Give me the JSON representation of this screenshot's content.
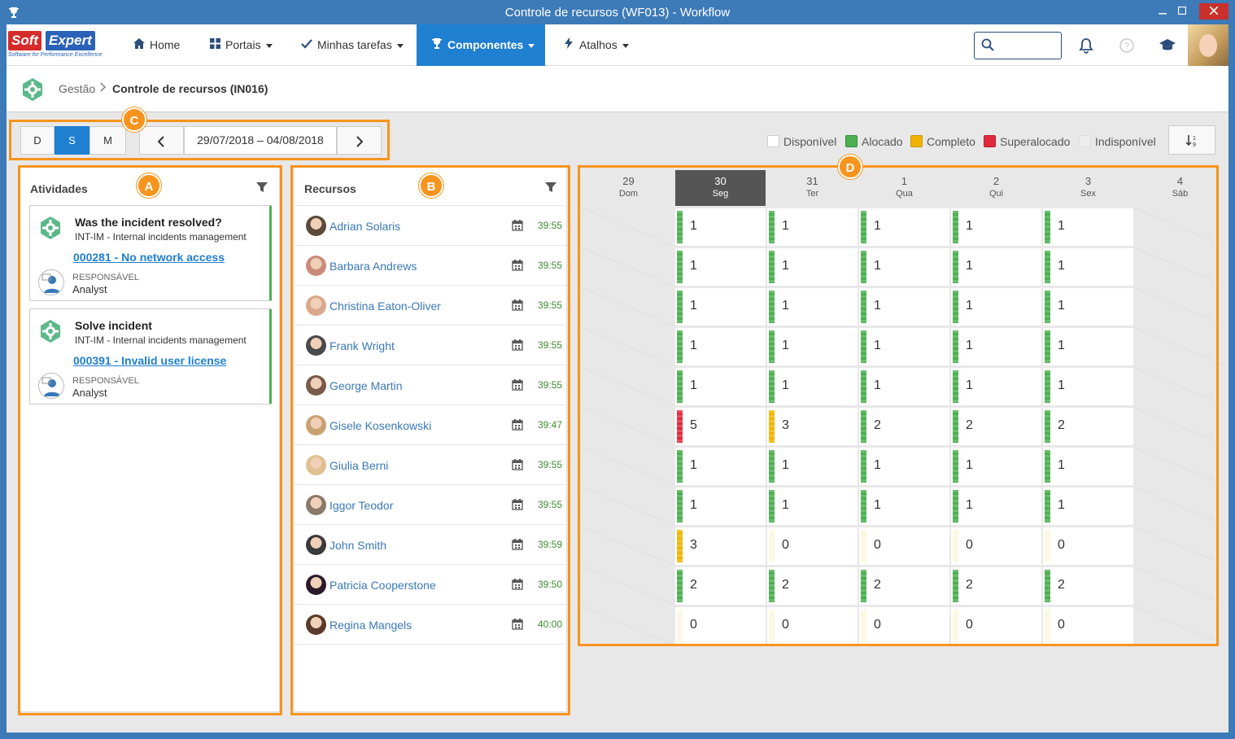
{
  "window": {
    "title": "Controle de recursos (WF013) - Workflow",
    "icon": "trophy-icon"
  },
  "logo": {
    "text1": "Soft",
    "text2": "Expert",
    "tagline": "Software for Performance Excellence"
  },
  "nav": [
    {
      "label": "Home",
      "icon": "home-icon",
      "dropdown": false,
      "active": false
    },
    {
      "label": "Portais",
      "icon": "grid-icon",
      "dropdown": true,
      "active": false
    },
    {
      "label": "Minhas tarefas",
      "icon": "check-icon",
      "dropdown": true,
      "active": false
    },
    {
      "label": "Componentes",
      "icon": "trophy-icon",
      "dropdown": true,
      "active": true
    },
    {
      "label": "Atalhos",
      "icon": "bolt-icon",
      "dropdown": true,
      "active": false
    }
  ],
  "search": {
    "placeholder": ""
  },
  "breadcrumb": {
    "parent": "Gestão",
    "current": "Controle de recursos (IN016)"
  },
  "toolbar": {
    "views": [
      {
        "label": "D",
        "active": false
      },
      {
        "label": "S",
        "active": true
      },
      {
        "label": "M",
        "active": false
      }
    ],
    "date_range": "29/07/2018 – 04/08/2018",
    "prev_icon": "chevron-left-icon",
    "next_icon": "chevron-right-icon",
    "sort_icon": "sort-icon"
  },
  "legend": [
    {
      "label": "Disponível",
      "color": "#ffffff"
    },
    {
      "label": "Alocado",
      "color": "#4caf50"
    },
    {
      "label": "Completo",
      "color": "#f0b400"
    },
    {
      "label": "Superalocado",
      "color": "#e0293d"
    },
    {
      "label": "Indisponível",
      "color": "#ececec"
    }
  ],
  "annotations": {
    "A": "A",
    "B": "B",
    "C": "C",
    "D": "D"
  },
  "activities": {
    "title": "Atividades",
    "items": [
      {
        "title": "Was the incident resolved?",
        "process": "INT-IM - Internal incidents management",
        "link": "000281 - No network access",
        "role_label": "RESPONSÁVEL",
        "role_name": "Analyst"
      },
      {
        "title": "Solve incident",
        "process": "INT-IM - Internal incidents management",
        "link": "000391 - Invalid user license",
        "role_label": "RESPONSÁVEL",
        "role_name": "Analyst"
      }
    ]
  },
  "resources": {
    "title": "Recursos",
    "items": [
      {
        "name": "Adrian Solaris",
        "time": "39:55"
      },
      {
        "name": "Barbara Andrews",
        "time": "39:55"
      },
      {
        "name": "Christina Eaton-Oliver",
        "time": "39:55"
      },
      {
        "name": "Frank Wright",
        "time": "39:55"
      },
      {
        "name": "George Martin",
        "time": "39:55"
      },
      {
        "name": "Gisele Kosenkowski",
        "time": "39:47"
      },
      {
        "name": "Giulia Berni",
        "time": "39:55"
      },
      {
        "name": "Iggor Teodor",
        "time": "39:55"
      },
      {
        "name": "John Smith",
        "time": "39:59"
      },
      {
        "name": "Patricia Cooperstone",
        "time": "39:50"
      },
      {
        "name": "Regina Mangels",
        "time": "40:00"
      }
    ]
  },
  "calendar": {
    "days": [
      {
        "num": "29",
        "wd": "Dom",
        "today": false
      },
      {
        "num": "30",
        "wd": "Seg",
        "today": true
      },
      {
        "num": "31",
        "wd": "Ter",
        "today": false
      },
      {
        "num": "1",
        "wd": "Qua",
        "today": false
      },
      {
        "num": "2",
        "wd": "Qui",
        "today": false
      },
      {
        "num": "3",
        "wd": "Sex",
        "today": false
      },
      {
        "num": "4",
        "wd": "Sáb",
        "today": false
      }
    ],
    "rows": [
      [
        null,
        [
          "1",
          "alocado"
        ],
        [
          "1",
          "alocado"
        ],
        [
          "1",
          "alocado"
        ],
        [
          "1",
          "alocado"
        ],
        [
          "1",
          "alocado"
        ],
        null
      ],
      [
        null,
        [
          "1",
          "alocado"
        ],
        [
          "1",
          "alocado"
        ],
        [
          "1",
          "alocado"
        ],
        [
          "1",
          "alocado"
        ],
        [
          "1",
          "alocado"
        ],
        null
      ],
      [
        null,
        [
          "1",
          "alocado"
        ],
        [
          "1",
          "alocado"
        ],
        [
          "1",
          "alocado"
        ],
        [
          "1",
          "alocado"
        ],
        [
          "1",
          "alocado"
        ],
        null
      ],
      [
        null,
        [
          "1",
          "alocado"
        ],
        [
          "1",
          "alocado"
        ],
        [
          "1",
          "alocado"
        ],
        [
          "1",
          "alocado"
        ],
        [
          "1",
          "alocado"
        ],
        null
      ],
      [
        null,
        [
          "1",
          "alocado"
        ],
        [
          "1",
          "alocado"
        ],
        [
          "1",
          "alocado"
        ],
        [
          "1",
          "alocado"
        ],
        [
          "1",
          "alocado"
        ],
        null
      ],
      [
        null,
        [
          "5",
          "superalocado"
        ],
        [
          "3",
          "completo"
        ],
        [
          "2",
          "alocado"
        ],
        [
          "2",
          "alocado"
        ],
        [
          "2",
          "alocado"
        ],
        null
      ],
      [
        null,
        [
          "1",
          "alocado"
        ],
        [
          "1",
          "alocado"
        ],
        [
          "1",
          "alocado"
        ],
        [
          "1",
          "alocado"
        ],
        [
          "1",
          "alocado"
        ],
        null
      ],
      [
        null,
        [
          "1",
          "alocado"
        ],
        [
          "1",
          "alocado"
        ],
        [
          "1",
          "alocado"
        ],
        [
          "1",
          "alocado"
        ],
        [
          "1",
          "alocado"
        ],
        null
      ],
      [
        null,
        [
          "3",
          "completo"
        ],
        [
          "0",
          "disponivel"
        ],
        [
          "0",
          "disponivel"
        ],
        [
          "0",
          "disponivel"
        ],
        [
          "0",
          "disponivel"
        ],
        null
      ],
      [
        null,
        [
          "2",
          "alocado"
        ],
        [
          "2",
          "alocado"
        ],
        [
          "2",
          "alocado"
        ],
        [
          "2",
          "alocado"
        ],
        [
          "2",
          "alocado"
        ],
        null
      ],
      [
        null,
        [
          "0",
          "disponivel"
        ],
        [
          "0",
          "disponivel"
        ],
        [
          "0",
          "disponivel"
        ],
        [
          "0",
          "disponivel"
        ],
        [
          "0",
          "disponivel"
        ],
        null
      ]
    ],
    "status_colors": {
      "alocado": "#4caf50",
      "completo": "#f0b400",
      "superalocado": "#e0293d",
      "disponivel": "#fbf9e3"
    }
  }
}
